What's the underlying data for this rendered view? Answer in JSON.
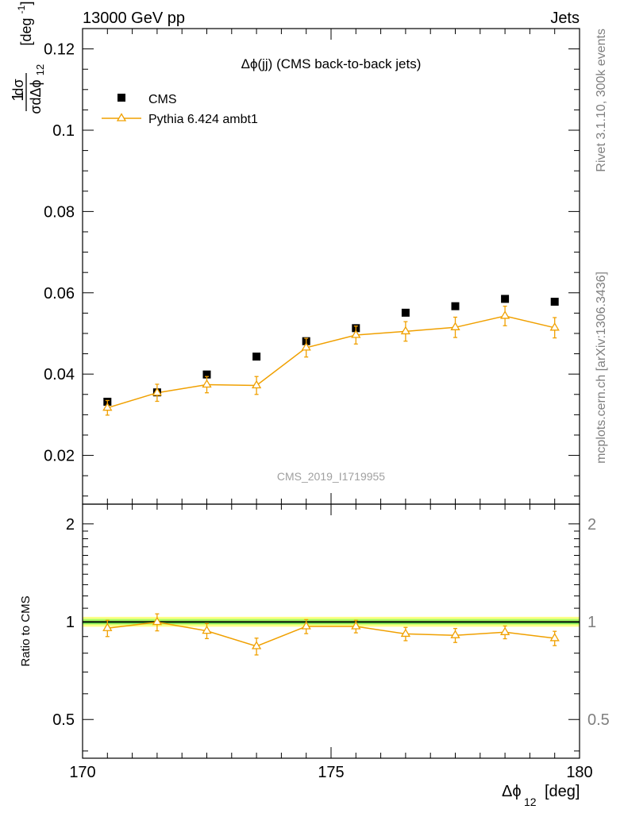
{
  "header": {
    "left": "13000 GeV pp",
    "right": "Jets"
  },
  "side_text": {
    "top": "Rivet 3.1.10,  300k events",
    "bottom": "mcplots.cern.ch [arXiv:1306.3436]"
  },
  "watermark": "CMS_2019_I1719955",
  "colors": {
    "data": "#000000",
    "mc": "#f0a000",
    "band_inner": "#aaff66",
    "band_outer": "#ffff88",
    "ratio_line": "#1a7a20"
  },
  "chart_data": [
    {
      "type": "scatter",
      "title": "Δϕ(jj) (CMS back-to-back jets)",
      "ylabel": "1/σ dσ/dΔϕ12 [deg-1]",
      "xlim": [
        170,
        180
      ],
      "ylim": [
        0.008,
        0.125
      ],
      "y_ticks": [
        "0.02",
        "0.04",
        "0.06",
        "0.08",
        "0.1",
        "0.12"
      ],
      "legend_position": "top-left",
      "series": [
        {
          "name": "CMS",
          "marker": "square",
          "x": [
            170.5,
            171.5,
            172.5,
            173.5,
            174.5,
            175.5,
            176.5,
            177.5,
            178.5,
            179.5
          ],
          "y": [
            0.0332,
            0.0355,
            0.0399,
            0.0443,
            0.0481,
            0.0513,
            0.0551,
            0.0567,
            0.0585,
            0.0578
          ]
        },
        {
          "name": "Pythia 6.424 ambt1",
          "marker": "open-triangle",
          "line": true,
          "x": [
            170.5,
            171.5,
            172.5,
            173.5,
            174.5,
            175.5,
            176.5,
            177.5,
            178.5,
            179.5
          ],
          "y": [
            0.0317,
            0.0354,
            0.0374,
            0.0372,
            0.0465,
            0.0496,
            0.0505,
            0.0515,
            0.0543,
            0.0514
          ],
          "yerr": [
            0.0018,
            0.0021,
            0.002,
            0.0022,
            0.0023,
            0.0022,
            0.0024,
            0.0025,
            0.0024,
            0.0025
          ]
        }
      ]
    },
    {
      "type": "scatter",
      "xlabel": "Δϕ12 [deg]",
      "ylabel": "Ratio to CMS",
      "xlim": [
        170,
        180
      ],
      "ylim": [
        0.38,
        2.3
      ],
      "scale": "log",
      "x_ticks": [
        "170",
        "175",
        "180"
      ],
      "y_ticks": [
        "0.5",
        "1",
        "2"
      ],
      "band": {
        "inner": 0.02,
        "outer": 0.035
      },
      "series": [
        {
          "name": "Pythia 6.424 ambt1",
          "x": [
            170.5,
            171.5,
            172.5,
            173.5,
            174.5,
            175.5,
            176.5,
            177.5,
            178.5,
            179.5
          ],
          "y": [
            0.955,
            0.997,
            0.937,
            0.84,
            0.967,
            0.967,
            0.917,
            0.908,
            0.928,
            0.889
          ],
          "yerr": [
            0.055,
            0.06,
            0.05,
            0.05,
            0.048,
            0.043,
            0.043,
            0.045,
            0.042,
            0.045
          ]
        }
      ]
    }
  ]
}
